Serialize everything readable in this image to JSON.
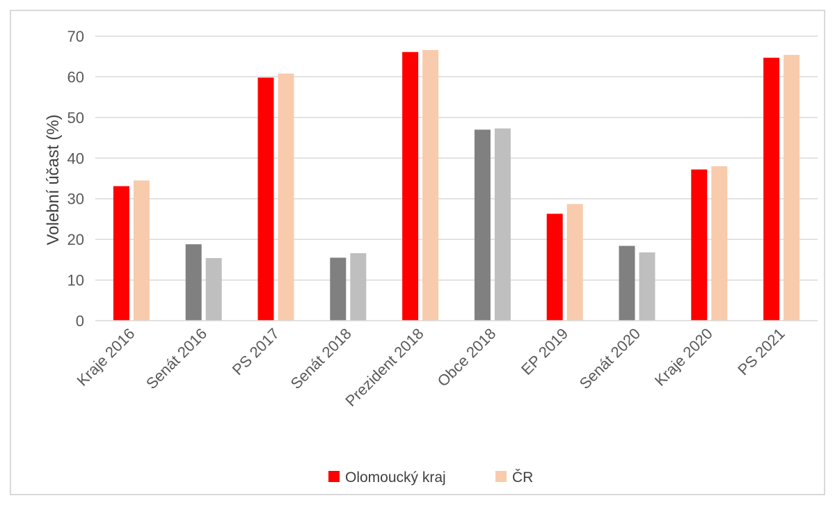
{
  "chart_data": {
    "type": "bar",
    "title": "",
    "xlabel": "",
    "ylabel": "Volební účast (%)",
    "ylim": [
      0,
      70
    ],
    "yticks": [
      0,
      10,
      20,
      30,
      40,
      50,
      60,
      70
    ],
    "grid": true,
    "legend_position": "bottom",
    "categories": [
      "Kraje 2016",
      "Senát 2016",
      "PS 2017",
      "Senát 2018",
      "Prezident 2018",
      "Obce 2018",
      "EP 2019",
      "Senát 2020",
      "Kraje 2020",
      "PS 2021"
    ],
    "series": [
      {
        "name": "Olomoucký kraj",
        "values": [
          33.1,
          18.8,
          59.8,
          15.5,
          66.1,
          47.0,
          26.3,
          18.4,
          37.2,
          64.7
        ]
      },
      {
        "name": "ČR",
        "values": [
          34.5,
          15.4,
          60.8,
          16.6,
          66.6,
          47.3,
          28.7,
          16.8,
          38.0,
          65.4
        ]
      }
    ],
    "colors": {
      "series_primary": [
        "#ff0000",
        "#f8cbad"
      ],
      "muted_categories": [
        "Senát 2016",
        "Senát 2018",
        "Obce 2018",
        "Senát 2020"
      ],
      "series_muted": [
        "#808080",
        "#bfbfbf"
      ]
    }
  }
}
